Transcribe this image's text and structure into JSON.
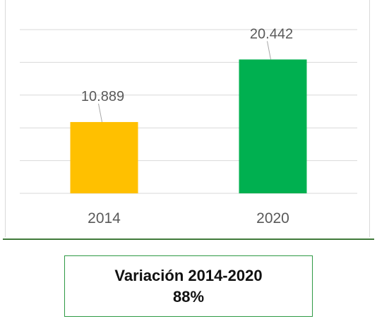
{
  "chart_data": {
    "type": "bar",
    "categories": [
      "2014",
      "2020"
    ],
    "values": [
      10889,
      20442
    ],
    "value_labels": [
      "10.889",
      "20.442"
    ],
    "colors": [
      "#ffc000",
      "#00b050"
    ],
    "ylim": [
      0,
      25000
    ],
    "grid": true,
    "legend": "none"
  },
  "summary": {
    "title": "Variación 2014-2020",
    "value": "88%"
  },
  "colors": {
    "gridline": "#d9d9d9",
    "label_text": "#595959",
    "box_border": "#2e9a44",
    "rule": "#3f7a3a"
  }
}
